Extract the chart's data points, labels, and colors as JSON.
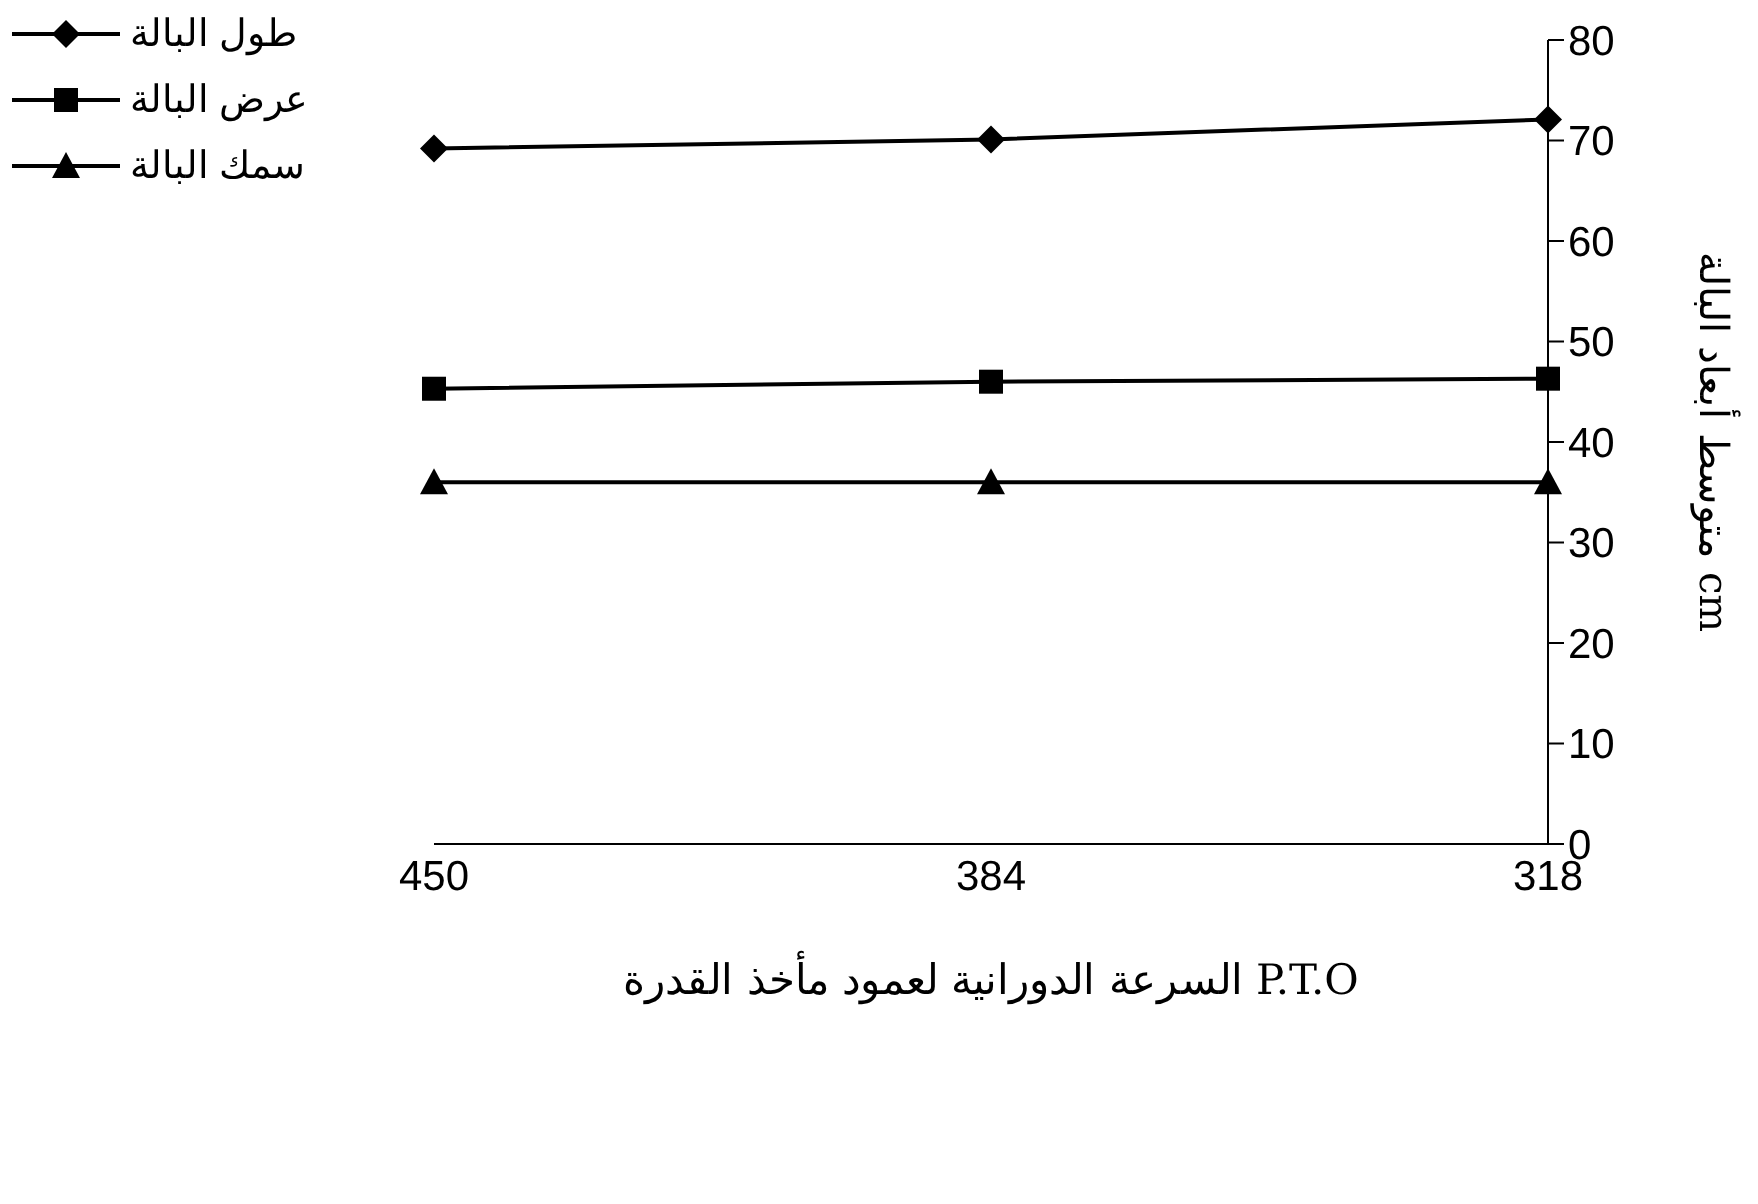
{
  "chart_data": {
    "type": "line",
    "xlabel": "السرعة الدورانية لعمود مأخذ القدرة  P.T.O",
    "ylabel": "متوسط أبعاد البالة cm",
    "categories": [
      "450",
      "384",
      "318"
    ],
    "series": [
      {
        "name": "طول البالة",
        "color": "#000000",
        "marker": "diamond",
        "values": [
          69.2,
          70.1,
          72.1
        ]
      },
      {
        "name": "عرض البالة",
        "color": "#000000",
        "marker": "square",
        "values": [
          45.3,
          46.0,
          46.3
        ]
      },
      {
        "name": "سمك البالة",
        "color": "#000000",
        "marker": "triangle",
        "values": [
          36,
          36,
          36
        ]
      }
    ],
    "ylim": [
      0,
      80
    ],
    "yticks": [
      0,
      10,
      20,
      30,
      40,
      50,
      60,
      70,
      80
    ],
    "grid": false,
    "legend": "top left",
    "line_style": "solid"
  }
}
